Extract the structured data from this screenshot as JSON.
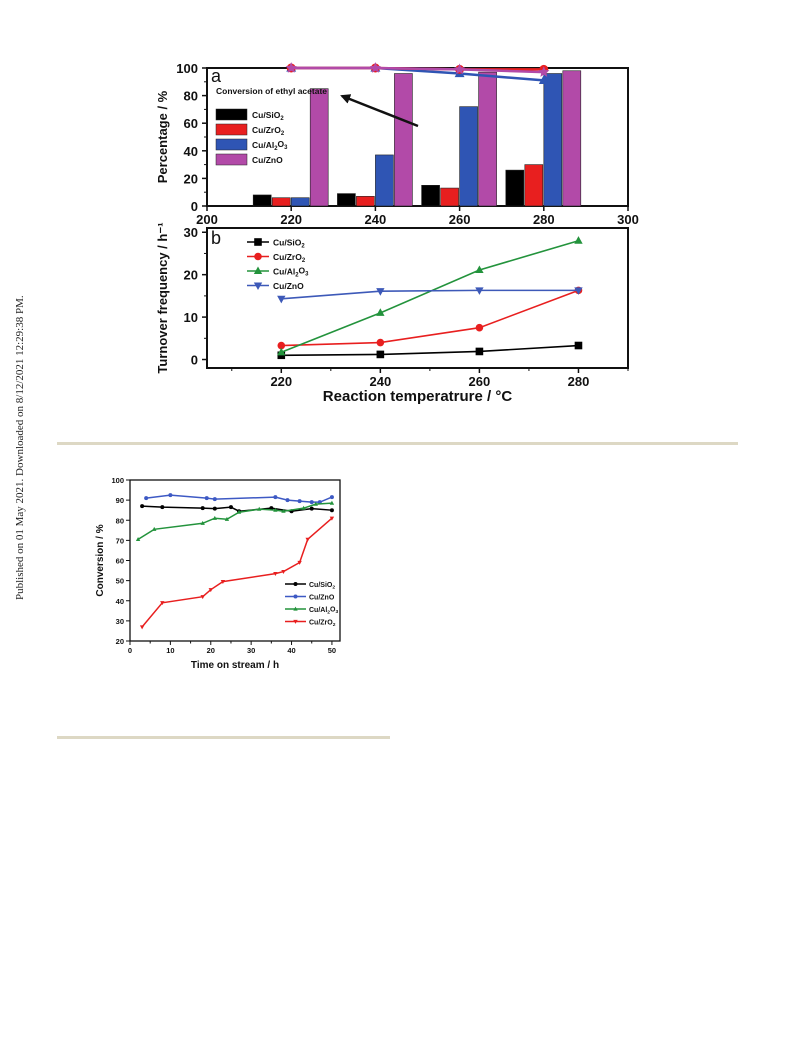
{
  "side_note": "Published on 01 May 2021. Downloaded on 8/12/2021 12:29:38 PM.",
  "colors": {
    "Cu/SiO2": "#000000",
    "Cu/ZrO2": "#e81f1f",
    "Cu/Al2O3": "#2f55b4",
    "Cu/ZnO": "#b24aa8",
    "tof_Cu/Al2O3": "#23933c",
    "tof_Cu/ZnO": "#3d59b8",
    "stream_Cu/Al2O3": "#23933c",
    "stream_Cu/ZnO": "#3d59c4",
    "rule": "#ddd8c4"
  },
  "chart_data": [
    {
      "type": "bar",
      "panel_label": "a",
      "ylabel": "Percentage / %",
      "xlim": [
        200,
        300
      ],
      "ylim": [
        0,
        100
      ],
      "x_ticks": [
        "200",
        "220",
        "240",
        "260",
        "280",
        "300"
      ],
      "y_ticks": [
        "0",
        "20",
        "40",
        "60",
        "80",
        "100"
      ],
      "categories": [
        220,
        240,
        260,
        280
      ],
      "series": [
        {
          "name": "Cu/SiO2",
          "values": [
            8,
            9,
            15,
            26
          ]
        },
        {
          "name": "Cu/ZrO2",
          "values": [
            6,
            7,
            13,
            30
          ]
        },
        {
          "name": "Cu/Al2O3",
          "values": [
            6,
            37,
            72,
            96
          ]
        },
        {
          "name": "Cu/ZnO",
          "values": [
            85,
            96,
            97,
            98
          ]
        }
      ],
      "conversion_lines": {
        "annotation": "Conversion of ethyl acetate",
        "series": [
          {
            "name": "Cu/Al2O3",
            "x": [
              220,
              240,
              260,
              280
            ],
            "y": [
              100,
              100,
              96,
              91
            ]
          },
          {
            "name": "Cu/ZrO2",
            "x": [
              220,
              240,
              260,
              280
            ],
            "y": [
              100,
              100,
              99,
              99
            ]
          },
          {
            "name": "Cu/ZnO",
            "x": [
              220,
              240,
              260,
              280
            ],
            "y": [
              100,
              100,
              99,
              97
            ]
          }
        ]
      }
    },
    {
      "type": "line",
      "panel_label": "b",
      "ylabel": "Turnover frequency / h⁻¹",
      "xlabel": "Reaction temperatrure / °C",
      "xlim": [
        205,
        290
      ],
      "ylim": [
        -2,
        31
      ],
      "x_ticks": [
        "220",
        "240",
        "260",
        "280"
      ],
      "y_ticks": [
        "0",
        "10",
        "20",
        "30"
      ],
      "x": [
        220,
        240,
        260,
        280
      ],
      "series": [
        {
          "name": "Cu/SiO2",
          "values": [
            1.0,
            1.2,
            1.9,
            3.3
          ]
        },
        {
          "name": "Cu/ZrO2",
          "values": [
            3.3,
            4.0,
            7.5,
            16.3
          ]
        },
        {
          "name": "Cu/Al2O3",
          "values": [
            1.7,
            11.0,
            21.1,
            28.0
          ]
        },
        {
          "name": "Cu/ZnO",
          "values": [
            14.3,
            16.1,
            16.3,
            16.3
          ]
        }
      ]
    },
    {
      "type": "line",
      "ylabel": "Conversion / %",
      "xlabel": "Time on stream / h",
      "xlim": [
        0,
        52
      ],
      "ylim": [
        20,
        100
      ],
      "x_ticks": [
        "0",
        "10",
        "20",
        "30",
        "40",
        "50"
      ],
      "y_ticks": [
        "20",
        "30",
        "40",
        "50",
        "60",
        "70",
        "80",
        "90",
        "100"
      ],
      "series": [
        {
          "name": "Cu/SiO2",
          "x": [
            3,
            8,
            18,
            21,
            25,
            27,
            35,
            40,
            45,
            50
          ],
          "y": [
            87,
            86.5,
            86,
            85.8,
            86.5,
            84.5,
            86,
            84.5,
            85.8,
            85
          ]
        },
        {
          "name": "Cu/ZnO",
          "x": [
            4,
            10,
            19,
            21,
            36,
            39,
            42,
            45,
            47,
            50
          ],
          "y": [
            91,
            92.5,
            91,
            90.5,
            91.5,
            90,
            89.5,
            89,
            89,
            91.5
          ]
        },
        {
          "name": "Cu/Al2O3",
          "x": [
            2,
            6,
            18,
            21,
            24,
            27,
            32,
            36,
            38,
            43,
            46,
            50
          ],
          "y": [
            70.5,
            75.5,
            78.5,
            81,
            80.5,
            84,
            85.5,
            85,
            84.5,
            86,
            88,
            88.5
          ]
        },
        {
          "name": "Cu/ZrO2",
          "x": [
            3,
            8,
            18,
            20,
            23,
            36,
            38,
            42,
            44,
            50
          ],
          "y": [
            27,
            39,
            42,
            45.5,
            49.5,
            53.5,
            54.5,
            59,
            70.5,
            81
          ]
        }
      ]
    }
  ]
}
